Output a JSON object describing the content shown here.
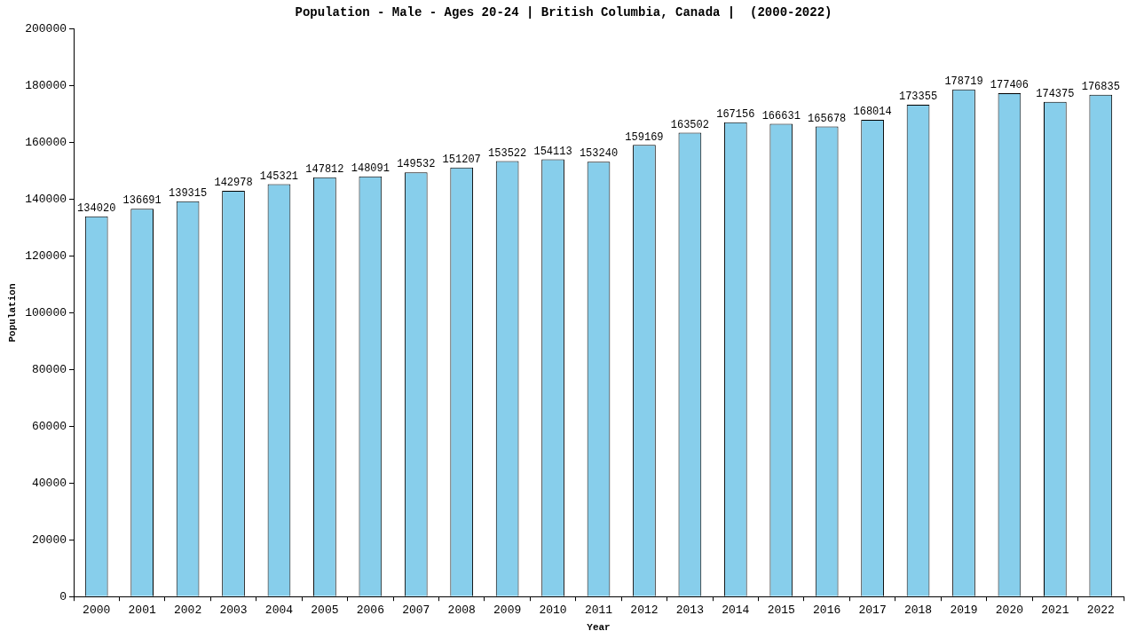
{
  "chart_data": {
    "type": "bar",
    "title": "Population - Male - Ages 20-24 | British Columbia, Canada |  (2000-2022)",
    "x_label": "Year",
    "y_label": "Population",
    "categories": [
      "2000",
      "2001",
      "2002",
      "2003",
      "2004",
      "2005",
      "2006",
      "2007",
      "2008",
      "2009",
      "2010",
      "2011",
      "2012",
      "2013",
      "2014",
      "2015",
      "2016",
      "2017",
      "2018",
      "2019",
      "2020",
      "2021",
      "2022"
    ],
    "values": [
      134020,
      136691,
      139315,
      142978,
      145321,
      147812,
      148091,
      149532,
      151207,
      153522,
      154113,
      153240,
      159169,
      163502,
      167156,
      166631,
      165678,
      168014,
      173355,
      178719,
      177406,
      174375,
      176835
    ],
    "color": "#87ceeb",
    "ylim": [
      0,
      200000
    ],
    "yticks": [
      0,
      20000,
      40000,
      60000,
      80000,
      100000,
      120000,
      140000,
      160000,
      180000,
      200000
    ],
    "grid": false,
    "data_labels": true
  }
}
